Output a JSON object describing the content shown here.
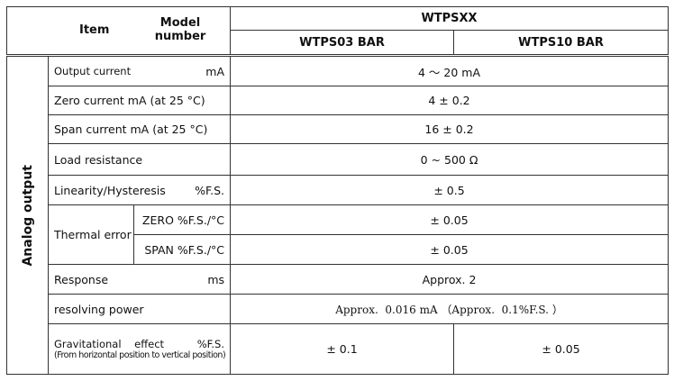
{
  "header": {
    "item": "Item",
    "model_number": "Model number",
    "series": "WTPSXX",
    "models": [
      "WTPS03 BAR",
      "WTPS10 BAR"
    ]
  },
  "side_label": "Analog output",
  "rows": [
    {
      "label": "Output current",
      "unit": "mA",
      "value": "4 ～ 20 mA"
    },
    {
      "label": "Zero current mA (at 25 °C)",
      "value": "4 ± 0.2"
    },
    {
      "label": "Span current mA (at 25 °C)",
      "value": "16 ± 0.2"
    },
    {
      "label": "Load resistance",
      "value": "0 ~ 500 Ω"
    },
    {
      "label": "Linearity/Hysteresis",
      "unit": "%F.S.",
      "value": "± 0.5"
    },
    {
      "label": "Thermal error",
      "sub": [
        {
          "label": "ZERO %F.S./°C",
          "value": "± 0.05"
        },
        {
          "label": "SPAN %F.S./°C",
          "value": "± 0.05"
        }
      ]
    },
    {
      "label": "Response",
      "unit": "ms",
      "value": "Approx. 2"
    },
    {
      "label": "resolving power",
      "value": "Approx.  0.016 mA （Approx.  0.1%F.S. ）"
    },
    {
      "label": "Gravitational    effect",
      "unit": "%F.S.",
      "note": "(From horizontal position to vertical position)",
      "values": [
        "± 0.1",
        "± 0.05"
      ]
    }
  ]
}
